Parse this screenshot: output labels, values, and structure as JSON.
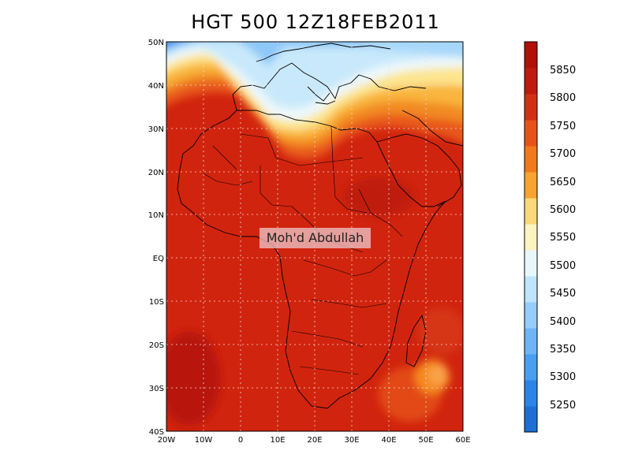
{
  "title": "HGT 500 12Z18FEB2011",
  "watermark": "Moh'd Abdullah",
  "map": {
    "lat_labels": [
      "50N",
      "40N",
      "30N",
      "20N",
      "10N",
      "EQ",
      "10S",
      "20S",
      "30S",
      "40S"
    ],
    "lon_labels": [
      "20W",
      "10W",
      "0",
      "10E",
      "20E",
      "30E",
      "40E",
      "50E",
      "60E"
    ],
    "grid": true
  },
  "colorbar": {
    "labels": [
      "5850",
      "5800",
      "5750",
      "5700",
      "5650",
      "5600",
      "5550",
      "5500",
      "5450",
      "5400",
      "5350",
      "5300",
      "5250"
    ],
    "colors": [
      "#1f6ed4",
      "#2b84e6",
      "#4a9ef0",
      "#6fb5f5",
      "#96cdf9",
      "#bfe4fb",
      "#e8f7fc",
      "#fdf3c0",
      "#fbd97a",
      "#f7a433",
      "#f07a1d",
      "#e6541a",
      "#d23015",
      "#bf1a10",
      "#b01008"
    ]
  }
}
